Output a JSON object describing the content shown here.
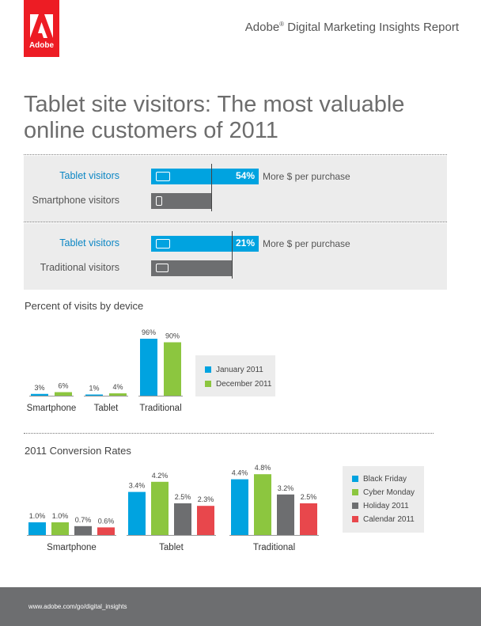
{
  "header": {
    "logo_text": "Adobe",
    "report_title": "Adobe",
    "report_title_mark": "®",
    "report_title_rest": " Digital Marketing Insights Report"
  },
  "title": "Tablet site visitors: The most valuable online customers of 2011",
  "comparisons": [
    {
      "top_label": "Tablet visitors",
      "bottom_label": "Smartphone visitors",
      "value_label": "54%",
      "value": 54,
      "note": "More $ per purchase"
    },
    {
      "top_label": "Tablet visitors",
      "bottom_label": "Traditional visitors",
      "value_label": "21%",
      "value": 21,
      "note": "More $ per purchase"
    }
  ],
  "colors": {
    "blue": "#00a3e0",
    "green": "#8cc63f",
    "gray": "#6d6e70",
    "red": "#e8474c",
    "brand": "#ed1c24"
  },
  "chart_data": [
    {
      "type": "bar",
      "title": "Percent of visits by device",
      "categories": [
        "Smartphone",
        "Tablet",
        "Traditional"
      ],
      "series": [
        {
          "name": "January 2011",
          "values": [
            3,
            1,
            96
          ],
          "labels": [
            "3%",
            "1%",
            "96%"
          ],
          "color": "#00a3e0"
        },
        {
          "name": "December 2011",
          "values": [
            6,
            4,
            90
          ],
          "labels": [
            "6%",
            "4%",
            "90%"
          ],
          "color": "#8cc63f"
        }
      ],
      "ylim": [
        0,
        100
      ],
      "legend": "right"
    },
    {
      "type": "bar",
      "title": "2011 Conversion Rates",
      "categories": [
        "Smartphone",
        "Tablet",
        "Traditional"
      ],
      "series": [
        {
          "name": "Black Friday",
          "values": [
            1.0,
            3.4,
            4.4
          ],
          "labels": [
            "1.0%",
            "3.4%",
            "4.4%"
          ],
          "color": "#00a3e0"
        },
        {
          "name": "Cyber Monday",
          "values": [
            1.0,
            4.2,
            4.8
          ],
          "labels": [
            "1.0%",
            "4.2%",
            "4.8%"
          ],
          "color": "#8cc63f"
        },
        {
          "name": "Holiday 2011",
          "values": [
            0.7,
            2.5,
            3.2
          ],
          "labels": [
            "0.7%",
            "2.5%",
            "3.2%"
          ],
          "color": "#6d6e70"
        },
        {
          "name": "Calendar 2011",
          "values": [
            0.6,
            2.3,
            2.5
          ],
          "labels": [
            "0.6%",
            "2.3%",
            "2.5%"
          ],
          "color": "#e8474c"
        }
      ],
      "ylim": [
        0,
        5
      ],
      "legend": "right"
    }
  ],
  "footer": {
    "url": "www.adobe.com/go/digital_insights"
  }
}
